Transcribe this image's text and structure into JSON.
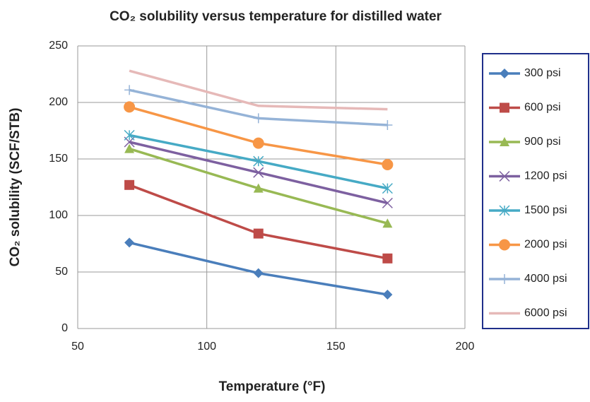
{
  "chart_data": {
    "type": "line",
    "title": "CO₂ solubility versus temperature for distilled water",
    "x_label": "Temperature (°F)",
    "y_label": "CO₂ solubility (SCF/STB)",
    "x": [
      70,
      120,
      170
    ],
    "xlim": [
      50,
      200
    ],
    "xticks": [
      50,
      100,
      150,
      200
    ],
    "ylim": [
      0,
      250
    ],
    "yticks": [
      0,
      50,
      100,
      150,
      200,
      250
    ],
    "grid": true,
    "legend": "right",
    "series": [
      {
        "name": "300 psi",
        "color": "#4a7ebb",
        "marker": "diamond",
        "values": [
          76,
          49,
          30
        ]
      },
      {
        "name": "600 psi",
        "color": "#be4b48",
        "marker": "square",
        "values": [
          127,
          84,
          62
        ]
      },
      {
        "name": "900 psi",
        "color": "#98b954",
        "marker": "triangle",
        "values": [
          159,
          124,
          93
        ]
      },
      {
        "name": "1200 psi",
        "color": "#7d60a0",
        "marker": "x",
        "values": [
          165,
          138,
          111
        ]
      },
      {
        "name": "1500 psi",
        "color": "#46aac5",
        "marker": "star",
        "values": [
          171,
          148,
          124
        ]
      },
      {
        "name": "2000 psi",
        "color": "#f79646",
        "marker": "circle",
        "values": [
          196,
          164,
          145
        ]
      },
      {
        "name": "4000 psi",
        "color": "#95b3d7",
        "marker": "plus",
        "values": [
          211,
          186,
          180
        ]
      },
      {
        "name": "6000 psi",
        "color": "#e6b9b8",
        "values": [
          228,
          197,
          194
        ]
      }
    ]
  }
}
